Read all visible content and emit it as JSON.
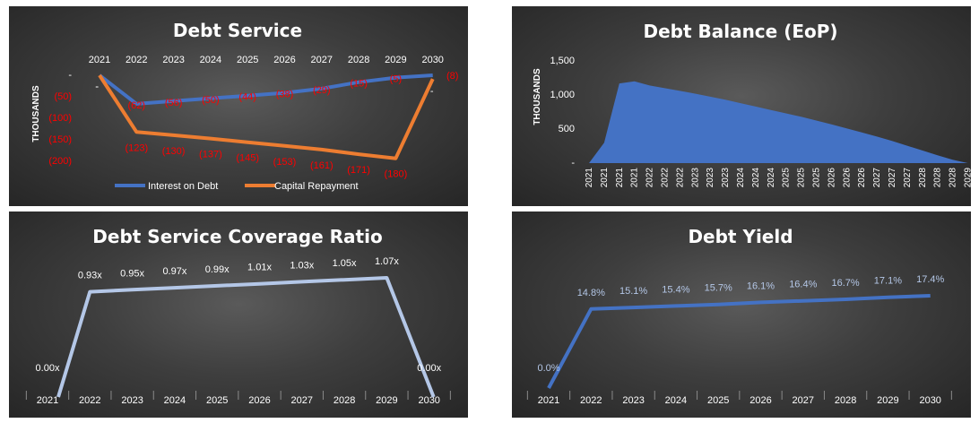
{
  "chart_data": [
    {
      "type": "line",
      "title": "Debt Service",
      "ylabel": "THOUSANDS",
      "categories": [
        "2021",
        "2022",
        "2023",
        "2024",
        "2025",
        "2026",
        "2027",
        "2028",
        "2029",
        "2030"
      ],
      "ylim": [
        -200,
        0
      ],
      "yticks": [
        "-",
        "(50)",
        "(100)",
        "(150)",
        "(200)"
      ],
      "legend_position": "bottom",
      "colors": {
        "interest": "#4472c4",
        "capital": "#ed7d31"
      },
      "series": [
        {
          "name": "Interest on Debt",
          "values": [
            0,
            -62,
            -56,
            -50,
            -44,
            -38,
            -29,
            -15,
            -5,
            0
          ],
          "labels": [
            "-",
            "(62)",
            "(56)",
            "(50)",
            "(44)",
            "(38)",
            "(29)",
            "(15)",
            "(5)",
            "-"
          ]
        },
        {
          "name": "Capital Repayment",
          "values": [
            0,
            -123,
            -130,
            -137,
            -145,
            -153,
            -161,
            -171,
            -180,
            -8
          ],
          "labels": [
            "-",
            "(123)",
            "(130)",
            "(137)",
            "(145)",
            "(153)",
            "(161)",
            "(171)",
            "(180)",
            "(8)"
          ]
        }
      ]
    },
    {
      "type": "area",
      "title": "Debt Balance (EoP)",
      "ylabel": "THOUSANDS",
      "ylim": [
        0,
        1500
      ],
      "yticks": [
        "-",
        "500",
        "1,000",
        "1,500"
      ],
      "color": "#4472c4",
      "x": [
        "2021",
        "2021",
        "2021",
        "2021",
        "2022",
        "2022",
        "2022",
        "2023",
        "2023",
        "2023",
        "2024",
        "2024",
        "2024",
        "2025",
        "2025",
        "2025",
        "2026",
        "2026",
        "2026",
        "2027",
        "2027",
        "2027",
        "2028",
        "2028",
        "2028",
        "2029",
        "2029",
        "2029",
        "2030",
        "2030"
      ],
      "values": [
        0,
        300,
        1170,
        1200,
        1140,
        1100,
        1060,
        1020,
        975,
        930,
        880,
        830,
        780,
        730,
        680,
        625,
        570,
        510,
        450,
        390,
        325,
        255,
        185,
        115,
        50,
        0,
        0,
        0,
        0,
        0
      ]
    },
    {
      "type": "line",
      "title": "Debt Service Coverage Ratio",
      "categories": [
        "2021",
        "2022",
        "2023",
        "2024",
        "2025",
        "2026",
        "2027",
        "2028",
        "2029",
        "2030"
      ],
      "ylim": [
        0,
        1.07
      ],
      "color": "#b4c7e7",
      "series": [
        {
          "values": [
            0,
            0.93,
            0.95,
            0.97,
            0.99,
            1.01,
            1.03,
            1.05,
            1.07,
            0
          ],
          "labels": [
            "0.00x",
            "0.93x",
            "0.95x",
            "0.97x",
            "0.99x",
            "1.01x",
            "1.03x",
            "1.05x",
            "1.07x",
            "0.00x"
          ]
        }
      ]
    },
    {
      "type": "line",
      "title": "Debt Yield",
      "categories": [
        "2021",
        "2022",
        "2023",
        "2024",
        "2025",
        "2026",
        "2027",
        "2028",
        "2029",
        "2030"
      ],
      "ylim": [
        0,
        17.4
      ],
      "color": "#4472c4",
      "series": [
        {
          "values": [
            0,
            14.8,
            15.1,
            15.4,
            15.7,
            16.1,
            16.4,
            16.7,
            17.1,
            17.4
          ],
          "labels": [
            "0.0%",
            "14.8%",
            "15.1%",
            "15.4%",
            "15.7%",
            "16.1%",
            "16.4%",
            "16.7%",
            "17.1%",
            "17.4%"
          ]
        }
      ]
    }
  ]
}
